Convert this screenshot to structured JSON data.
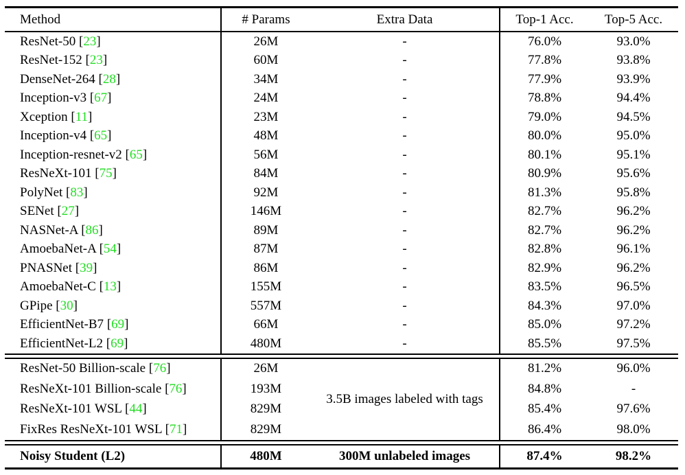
{
  "table": {
    "citation_color": "#22dd22",
    "cite_prefix": " [",
    "cite_suffix": "]",
    "columns": [
      "Method",
      "# Params",
      "Extra Data",
      "Top-1 Acc.",
      "Top-5 Acc."
    ],
    "sections": [
      {
        "rows": [
          {
            "method": "ResNet-50",
            "cite": "23",
            "params": "26M",
            "extra": "-",
            "top1": "76.0%",
            "top5": "93.0%"
          },
          {
            "method": "ResNet-152",
            "cite": "23",
            "params": "60M",
            "extra": "-",
            "top1": "77.8%",
            "top5": "93.8%"
          },
          {
            "method": "DenseNet-264",
            "cite": "28",
            "params": "34M",
            "extra": "-",
            "top1": "77.9%",
            "top5": "93.9%"
          },
          {
            "method": "Inception-v3",
            "cite": "67",
            "params": "24M",
            "extra": "-",
            "top1": "78.8%",
            "top5": "94.4%"
          },
          {
            "method": "Xception",
            "cite": "11",
            "params": "23M",
            "extra": "-",
            "top1": "79.0%",
            "top5": "94.5%"
          },
          {
            "method": "Inception-v4",
            "cite": "65",
            "params": "48M",
            "extra": "-",
            "top1": "80.0%",
            "top5": "95.0%"
          },
          {
            "method": "Inception-resnet-v2",
            "cite": "65",
            "params": "56M",
            "extra": "-",
            "top1": "80.1%",
            "top5": "95.1%"
          },
          {
            "method": "ResNeXt-101",
            "cite": "75",
            "params": "84M",
            "extra": "-",
            "top1": "80.9%",
            "top5": "95.6%"
          },
          {
            "method": "PolyNet",
            "cite": "83",
            "params": "92M",
            "extra": "-",
            "top1": "81.3%",
            "top5": "95.8%"
          },
          {
            "method": "SENet",
            "cite": "27",
            "params": "146M",
            "extra": "-",
            "top1": "82.7%",
            "top5": "96.2%"
          },
          {
            "method": "NASNet-A",
            "cite": "86",
            "params": "89M",
            "extra": "-",
            "top1": "82.7%",
            "top5": "96.2%"
          },
          {
            "method": "AmoebaNet-A",
            "cite": "54",
            "params": "87M",
            "extra": "-",
            "top1": "82.8%",
            "top5": "96.1%"
          },
          {
            "method": "PNASNet",
            "cite": "39",
            "params": "86M",
            "extra": "-",
            "top1": "82.9%",
            "top5": "96.2%"
          },
          {
            "method": "AmoebaNet-C",
            "cite": "13",
            "params": "155M",
            "extra": "-",
            "top1": "83.5%",
            "top5": "96.5%"
          },
          {
            "method": "GPipe",
            "cite": "30",
            "params": "557M",
            "extra": "-",
            "top1": "84.3%",
            "top5": "97.0%"
          },
          {
            "method": "EfficientNet-B7",
            "cite": "69",
            "params": "66M",
            "extra": "-",
            "top1": "85.0%",
            "top5": "97.2%"
          },
          {
            "method": "EfficientNet-L2",
            "cite": "69",
            "params": "480M",
            "extra": "-",
            "top1": "85.5%",
            "top5": "97.5%"
          }
        ]
      },
      {
        "extra_merged": "3.5B images labeled with tags",
        "rows": [
          {
            "method": "ResNet-50 Billion-scale",
            "cite": "76",
            "params": "26M",
            "top1": "81.2%",
            "top5": "96.0%"
          },
          {
            "method": "ResNeXt-101 Billion-scale",
            "cite": "76",
            "params": "193M",
            "top1": "84.8%",
            "top5": "-"
          },
          {
            "method": "ResNeXt-101 WSL",
            "cite": "44",
            "params": "829M",
            "top1": "85.4%",
            "top5": "97.6%"
          },
          {
            "method": "FixRes ResNeXt-101 WSL",
            "cite": "71",
            "params": "829M",
            "top1": "86.4%",
            "top5": "98.0%"
          }
        ]
      },
      {
        "bold": true,
        "rows": [
          {
            "method": "Noisy Student (L2)",
            "params": "480M",
            "extra": "300M unlabeled images",
            "top1": "87.4%",
            "top5": "98.2%"
          }
        ]
      }
    ]
  }
}
